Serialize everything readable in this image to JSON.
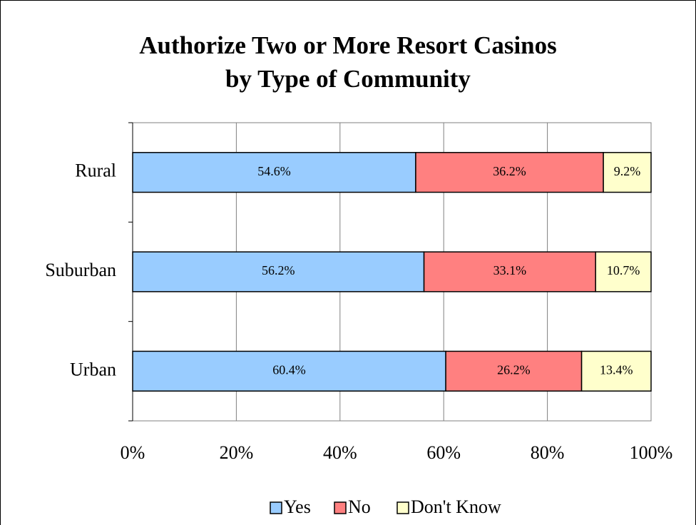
{
  "chart_data": {
    "type": "stacked_barh",
    "title": "Authorize Two or More Resort Casinos by Type of Community",
    "categories": [
      "Rural",
      "Suburban",
      "Urban"
    ],
    "series": [
      {
        "name": "Yes",
        "color": "#99ccff",
        "values": [
          54.6,
          56.2,
          60.4
        ],
        "value_labels": [
          "54.6%",
          "56.2%",
          "60.4%"
        ]
      },
      {
        "name": "No",
        "color": "#ff8080",
        "values": [
          36.2,
          33.1,
          26.2
        ],
        "value_labels": [
          "36.2%",
          "33.1%",
          "26.2%"
        ]
      },
      {
        "name": "Don't Know",
        "color": "#ffffcc",
        "values": [
          9.2,
          10.7,
          13.4
        ],
        "value_labels": [
          "9.2%",
          "10.7%",
          "13.4%"
        ]
      }
    ],
    "xlim": [
      0,
      100
    ],
    "xticks": [
      {
        "value": 0,
        "label": "0%"
      },
      {
        "value": 20,
        "label": "20%"
      },
      {
        "value": 40,
        "label": "40%"
      },
      {
        "value": 60,
        "label": "60%"
      },
      {
        "value": 80,
        "label": "80%"
      },
      {
        "value": 100,
        "label": "100%"
      }
    ],
    "grid": true,
    "legend": "bottom"
  }
}
